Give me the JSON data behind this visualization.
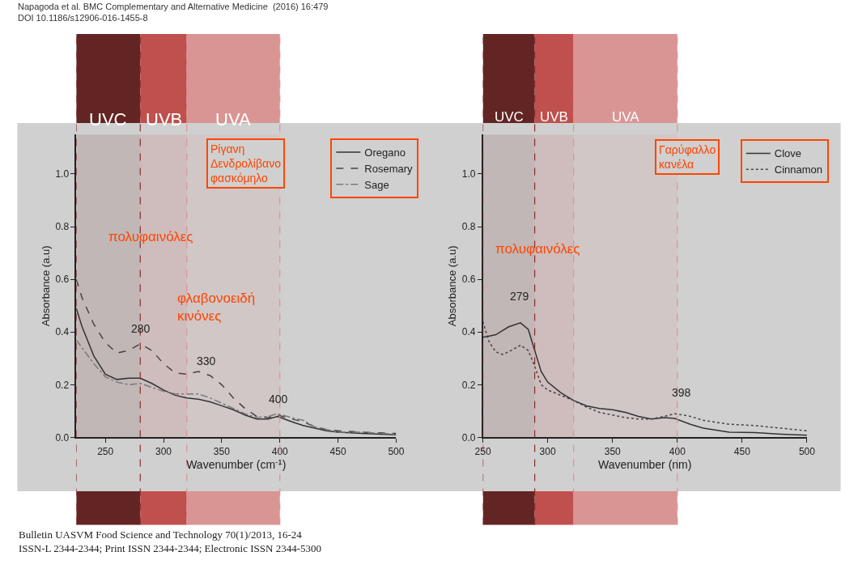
{
  "chart_data": [
    {
      "type": "line",
      "title": "Napagoda et al. BMC Complementary and Alternative Medicine  (2016) 16:479\nDOI 10.1186/s12906-016-1455-8",
      "xlabel": "Wavenumber (cm$^{-1}$)",
      "ylabel": "Absorbance (a.u)",
      "xlim": [
        225,
        500
      ],
      "xticks": [
        250,
        300,
        350,
        400,
        450,
        500
      ],
      "ylim": [
        0,
        1.15
      ],
      "yticks": [
        {
          "value": 0,
          "label": "0.0"
        },
        {
          "value": 0.2,
          "label": "0.2"
        },
        {
          "value": 0.4,
          "label": "0.4"
        },
        {
          "value": 0.6,
          "label": "0.6"
        },
        {
          "value": 0.8,
          "label": "0.8"
        },
        {
          "value": 1.0,
          "label": "1.0"
        }
      ],
      "grid": false,
      "legend": "top right",
      "marker": "none",
      "bands": [
        {
          "axis": "x",
          "from": 225,
          "to": 280,
          "label": "UVC",
          "color": "#632523"
        },
        {
          "axis": "x",
          "from": 280,
          "to": 320,
          "label": "UVB",
          "color": "#c0504d"
        },
        {
          "axis": "x",
          "from": 320,
          "to": 400,
          "label": "UVA",
          "color": "#d99594"
        }
      ],
      "ref_lines": [
        {
          "axis": "x",
          "value": 225,
          "color": "#8b2e2e",
          "line_style": "dashed"
        },
        {
          "axis": "x",
          "value": 280,
          "color": "#8b2e2e",
          "line_style": "dashed"
        },
        {
          "axis": "x",
          "value": 320,
          "color": "#e09090",
          "line_style": "dashed"
        },
        {
          "axis": "x",
          "value": 400,
          "color": "#e09090",
          "line_style": "dashed"
        }
      ],
      "x": [
        225,
        230,
        240,
        250,
        260,
        270,
        280,
        290,
        300,
        310,
        320,
        330,
        340,
        350,
        360,
        370,
        380,
        390,
        398,
        410,
        420,
        430,
        440,
        450,
        470,
        500
      ],
      "series": [
        {
          "name": "Oregano",
          "color": "#333333",
          "line_style": "solid",
          "values": [
            0.49,
            0.42,
            0.31,
            0.24,
            0.22,
            0.225,
            0.225,
            0.205,
            0.18,
            0.16,
            0.15,
            0.145,
            0.135,
            0.12,
            0.105,
            0.085,
            0.07,
            0.07,
            0.08,
            0.06,
            0.045,
            0.035,
            0.025,
            0.02,
            0.015,
            0.01
          ]
        },
        {
          "name": "Rosemary",
          "color": "#444444",
          "line_style": "dashed",
          "values": [
            0.6,
            0.53,
            0.43,
            0.36,
            0.32,
            0.33,
            0.355,
            0.33,
            0.28,
            0.245,
            0.24,
            0.25,
            0.235,
            0.2,
            0.15,
            0.11,
            0.08,
            0.075,
            0.085,
            0.07,
            0.06,
            0.04,
            0.03,
            0.025,
            0.02,
            0.015
          ]
        },
        {
          "name": "Sage",
          "color": "#7a7a7a",
          "line_style": "dashdot",
          "values": [
            0.37,
            0.34,
            0.28,
            0.23,
            0.21,
            0.2,
            0.205,
            0.19,
            0.175,
            0.165,
            0.165,
            0.165,
            0.15,
            0.13,
            0.11,
            0.09,
            0.075,
            0.08,
            0.09,
            0.075,
            0.065,
            0.04,
            0.03,
            0.02,
            0.02,
            0.012
          ]
        }
      ],
      "annotations": [
        "πολυφαινόλες",
        "φλαβονοειδή\nκινόνες",
        "280",
        "330",
        "400",
        "Ρίγανη\nΔενδρολίβανο\nφασκόμηλο",
        "Bulletin UASVM Food Science and Technology 70(1)/2013, 16-24\nISSN-L 2344-2344; Print ISSN 2344-2344; Electronic ISSN 2344-5300"
      ]
    },
    {
      "type": "line",
      "xlabel": "Wavenumber (nm)",
      "ylabel": "Absorbance (a.u)",
      "xlim": [
        250,
        500
      ],
      "xticks": [
        250,
        300,
        350,
        400,
        450,
        500
      ],
      "ylim": [
        0,
        1.15
      ],
      "yticks": [
        {
          "value": 0,
          "label": "0.0"
        },
        {
          "value": 0.2,
          "label": "0.2"
        },
        {
          "value": 0.4,
          "label": "0.4"
        },
        {
          "value": 0.6,
          "label": "0.6"
        },
        {
          "value": 0.8,
          "label": "0.8"
        },
        {
          "value": 1.0,
          "label": "1.0"
        }
      ],
      "grid": false,
      "legend": "top right",
      "marker": "none",
      "bands": [
        {
          "axis": "x",
          "from": 250,
          "to": 290,
          "label": "UVC",
          "color": "#632523"
        },
        {
          "axis": "x",
          "from": 290,
          "to": 320,
          "label": "UVB",
          "color": "#c0504d"
        },
        {
          "axis": "x",
          "from": 320,
          "to": 400,
          "label": "UVA",
          "color": "#d99594"
        }
      ],
      "ref_lines": [
        {
          "axis": "x",
          "value": 250,
          "color": "#8b2e2e",
          "line_style": "dashed"
        },
        {
          "axis": "x",
          "value": 290,
          "color": "#8b2e2e",
          "line_style": "dashed"
        },
        {
          "axis": "x",
          "value": 320,
          "color": "#e09090",
          "line_style": "dashed"
        },
        {
          "axis": "x",
          "value": 400,
          "color": "#e09090",
          "line_style": "dashed"
        }
      ],
      "x": [
        250,
        255,
        260,
        265,
        270,
        279,
        285,
        290,
        295,
        300,
        310,
        320,
        330,
        340,
        350,
        360,
        370,
        380,
        390,
        398,
        410,
        420,
        440,
        460,
        480,
        500
      ],
      "series": [
        {
          "name": "Clove",
          "color": "#333333",
          "line_style": "solid",
          "values": [
            0.38,
            0.385,
            0.39,
            0.405,
            0.42,
            0.435,
            0.41,
            0.33,
            0.25,
            0.21,
            0.17,
            0.14,
            0.12,
            0.11,
            0.105,
            0.095,
            0.08,
            0.07,
            0.075,
            0.072,
            0.05,
            0.035,
            0.02,
            0.018,
            0.012,
            0.008
          ]
        },
        {
          "name": "Cinnamon",
          "color": "#444444",
          "line_style": "dotted",
          "values": [
            0.44,
            0.36,
            0.325,
            0.315,
            0.325,
            0.35,
            0.33,
            0.27,
            0.2,
            0.18,
            0.16,
            0.14,
            0.115,
            0.095,
            0.085,
            0.075,
            0.07,
            0.07,
            0.08,
            0.09,
            0.08,
            0.065,
            0.05,
            0.045,
            0.035,
            0.025
          ]
        }
      ],
      "annotations": [
        "πολυφαινόλες",
        "279",
        "398",
        "Γαρύφαλλο\nκανέλα"
      ]
    }
  ]
}
